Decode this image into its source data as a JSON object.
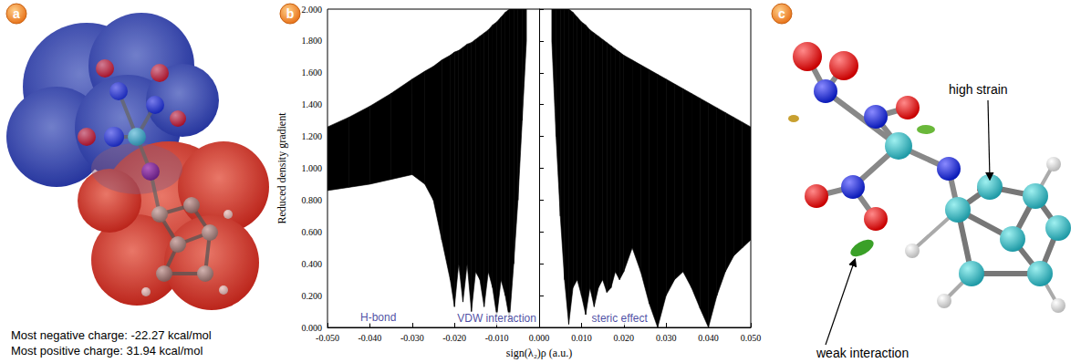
{
  "panels": {
    "a": {
      "letter": "a",
      "notes": [
        "Most negative charge: -22.27 kcal/mol",
        "Most positive charge: 31.94 kcal/mol"
      ]
    },
    "b": {
      "letter": "b"
    },
    "c": {
      "letter": "c",
      "labels": [
        "high strain",
        "weak interaction"
      ]
    }
  },
  "chart_data": {
    "type": "band",
    "color": "#000000",
    "xlabel": "sign(λ₂)ρ (a.u.)",
    "ylabel": "Reduced density gradient",
    "xlim": [
      -0.05,
      0.05
    ],
    "ylim": [
      0,
      2
    ],
    "xticks": [
      {
        "value": -0.05,
        "label": "-0.050"
      },
      {
        "value": -0.04,
        "label": "-0.040"
      },
      {
        "value": -0.03,
        "label": "-0.030"
      },
      {
        "value": -0.02,
        "label": "-0.020"
      },
      {
        "value": -0.01,
        "label": "-0.010"
      },
      {
        "value": 0,
        "label": "0.000"
      },
      {
        "value": 0.01,
        "label": "0.010"
      },
      {
        "value": 0.02,
        "label": "0.020"
      },
      {
        "value": 0.03,
        "label": "0.030"
      },
      {
        "value": 0.04,
        "label": "0.040"
      },
      {
        "value": 0.05,
        "label": "0.050"
      }
    ],
    "yticks": [
      {
        "value": 0,
        "label": "0.000"
      },
      {
        "value": 0.2,
        "label": "0.200"
      },
      {
        "value": 0.4,
        "label": "0.400"
      },
      {
        "value": 0.6,
        "label": "0.600"
      },
      {
        "value": 0.8,
        "label": "0.800"
      },
      {
        "value": 1.0,
        "label": "1.000"
      },
      {
        "value": 1.2,
        "label": "1.200"
      },
      {
        "value": 1.4,
        "label": "1.400"
      },
      {
        "value": 1.6,
        "label": "1.600"
      },
      {
        "value": 1.8,
        "label": "1.800"
      },
      {
        "value": 2.0,
        "label": "2.000"
      }
    ],
    "grid": false,
    "series": [
      {
        "x": [
          -0.05,
          -0.045,
          -0.04,
          -0.035,
          -0.03,
          -0.027,
          -0.025,
          -0.023,
          -0.021,
          -0.02,
          -0.019,
          -0.018,
          -0.017,
          -0.016,
          -0.015,
          -0.014,
          -0.013,
          -0.012,
          -0.011,
          -0.01,
          -0.009,
          -0.008,
          -0.007,
          -0.006,
          -0.005,
          -0.004,
          -0.003
        ],
        "lower": [
          0.86,
          0.88,
          0.9,
          0.93,
          0.96,
          0.9,
          0.8,
          0.55,
          0.3,
          0.13,
          0.4,
          0.16,
          0.4,
          0.1,
          0.35,
          0.3,
          0.13,
          0.35,
          0.25,
          0.07,
          0.3,
          0.2,
          0.05,
          0.4,
          0.8,
          1.3,
          1.8
        ],
        "upper": [
          1.26,
          1.32,
          1.39,
          1.47,
          1.56,
          1.61,
          1.64,
          1.68,
          1.71,
          1.73,
          1.74,
          1.76,
          1.78,
          1.79,
          1.81,
          1.83,
          1.85,
          1.87,
          1.9,
          1.92,
          1.95,
          1.98,
          2.0,
          2.0,
          2.0,
          2.0,
          2.0
        ]
      },
      {
        "x": [
          0.003,
          0.004,
          0.005,
          0.006,
          0.007,
          0.008,
          0.009,
          0.01,
          0.011,
          0.012,
          0.013,
          0.014,
          0.015,
          0.016,
          0.017,
          0.018,
          0.019,
          0.02,
          0.022,
          0.024,
          0.026,
          0.028,
          0.03,
          0.032,
          0.034,
          0.036,
          0.038,
          0.04,
          0.042,
          0.044,
          0.046,
          0.048,
          0.05
        ],
        "lower": [
          1.8,
          1.2,
          0.7,
          0.3,
          0.02,
          0.25,
          0.3,
          0.2,
          0.08,
          0.25,
          0.13,
          0.25,
          0.3,
          0.22,
          0.25,
          0.35,
          0.3,
          0.35,
          0.5,
          0.35,
          0.15,
          0.0,
          0.2,
          0.3,
          0.35,
          0.25,
          0.12,
          0.0,
          0.2,
          0.35,
          0.45,
          0.5,
          0.55
        ],
        "upper": [
          2.0,
          2.0,
          2.0,
          2.0,
          2.0,
          1.98,
          1.95,
          1.92,
          1.9,
          1.87,
          1.85,
          1.83,
          1.81,
          1.79,
          1.77,
          1.75,
          1.73,
          1.71,
          1.68,
          1.65,
          1.62,
          1.59,
          1.56,
          1.53,
          1.5,
          1.47,
          1.44,
          1.41,
          1.38,
          1.35,
          1.32,
          1.29,
          1.26
        ]
      }
    ],
    "annotations": [
      {
        "text": "H-bond",
        "x": -0.038,
        "y": 0.065
      },
      {
        "text": "VDW interaction",
        "x": -0.01,
        "y": 0.055
      },
      {
        "text": "steric effect",
        "x": 0.019,
        "y": 0.055
      }
    ]
  }
}
